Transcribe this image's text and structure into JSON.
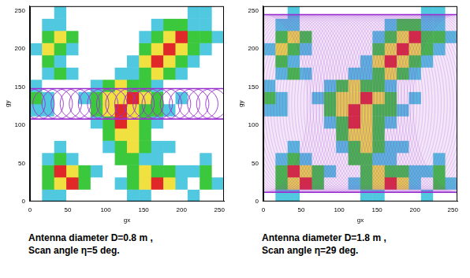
{
  "chart_data": [
    {
      "type": "heatmap",
      "caption": [
        "Antenna diameter D=0.8 m ,",
        "Scan angle η=5 deg."
      ],
      "x_label": "gx",
      "y_label": "gy",
      "xlim": [
        0,
        256
      ],
      "ylim": [
        0,
        256
      ],
      "xticks": [
        0,
        50,
        100,
        150,
        200,
        250
      ],
      "yticks": [
        0,
        50,
        100,
        150,
        200,
        250
      ],
      "grid": false,
      "cell_size": 16,
      "colors": [
        "#ffffff",
        "#50c8e0",
        "#3cc83c",
        "#f0e040",
        "#e02828"
      ],
      "cells": [
        [
          0,
          1,
          1,
          0,
          0,
          0,
          0,
          0,
          1,
          1,
          0,
          0,
          0,
          1,
          0,
          0
        ],
        [
          0,
          2,
          3,
          4,
          2,
          0,
          0,
          1,
          2,
          3,
          4,
          3,
          1,
          0,
          2,
          1
        ],
        [
          0,
          2,
          4,
          3,
          2,
          1,
          0,
          0,
          2,
          3,
          2,
          2,
          1,
          1,
          2,
          0
        ],
        [
          0,
          1,
          2,
          1,
          0,
          0,
          0,
          2,
          2,
          1,
          1,
          0,
          0,
          0,
          1,
          0
        ],
        [
          0,
          0,
          1,
          0,
          0,
          0,
          1,
          2,
          3,
          2,
          1,
          1,
          0,
          0,
          0,
          0
        ],
        [
          0,
          0,
          0,
          0,
          0,
          0,
          2,
          3,
          3,
          2,
          0,
          0,
          0,
          0,
          0,
          0
        ],
        [
          0,
          0,
          0,
          0,
          0,
          1,
          2,
          4,
          3,
          2,
          1,
          0,
          0,
          0,
          0,
          0
        ],
        [
          1,
          1,
          0,
          0,
          0,
          2,
          3,
          4,
          3,
          2,
          2,
          1,
          0,
          0,
          0,
          0
        ],
        [
          2,
          1,
          0,
          0,
          1,
          2,
          3,
          3,
          4,
          3,
          2,
          0,
          1,
          0,
          0,
          0
        ],
        [
          1,
          0,
          0,
          0,
          0,
          1,
          2,
          3,
          2,
          2,
          1,
          0,
          0,
          0,
          0,
          0
        ],
        [
          0,
          1,
          2,
          1,
          0,
          0,
          0,
          1,
          1,
          2,
          3,
          2,
          1,
          0,
          0,
          0
        ],
        [
          0,
          2,
          1,
          0,
          0,
          0,
          0,
          0,
          1,
          3,
          4,
          3,
          2,
          1,
          0,
          0
        ],
        [
          1,
          3,
          2,
          1,
          0,
          0,
          0,
          0,
          0,
          2,
          3,
          4,
          3,
          2,
          1,
          0
        ],
        [
          0,
          2,
          3,
          2,
          0,
          0,
          0,
          0,
          0,
          1,
          2,
          3,
          4,
          2,
          2,
          1
        ],
        [
          0,
          1,
          1,
          0,
          0,
          0,
          0,
          0,
          0,
          0,
          1,
          2,
          2,
          1,
          1,
          0
        ],
        [
          0,
          0,
          1,
          0,
          0,
          0,
          0,
          0,
          0,
          0,
          0,
          0,
          0,
          1,
          1,
          0
        ]
      ],
      "swath": {
        "ymin": 108,
        "ymax": 148,
        "color": "#9b30d0"
      }
    },
    {
      "type": "heatmap",
      "caption": [
        "Antenna diameter D=1.8 m ,",
        "Scan angle η=29 deg."
      ],
      "x_label": "gx",
      "y_label": "gy",
      "xlim": [
        0,
        256
      ],
      "ylim": [
        0,
        256
      ],
      "xticks": [
        0,
        50,
        100,
        150,
        200,
        250
      ],
      "yticks": [
        0,
        50,
        100,
        150,
        200,
        250
      ],
      "grid": false,
      "cell_size": 16,
      "colors": [
        "#ffffff",
        "#50c8e0",
        "#3cc83c",
        "#f0e040",
        "#e02828"
      ],
      "cells": [
        [
          0,
          1,
          1,
          0,
          0,
          0,
          0,
          0,
          1,
          1,
          0,
          0,
          0,
          1,
          0,
          0
        ],
        [
          0,
          2,
          3,
          4,
          2,
          0,
          0,
          1,
          2,
          3,
          4,
          3,
          1,
          0,
          2,
          1
        ],
        [
          0,
          2,
          4,
          3,
          2,
          1,
          0,
          0,
          2,
          3,
          2,
          2,
          1,
          1,
          2,
          0
        ],
        [
          0,
          1,
          2,
          1,
          0,
          0,
          0,
          2,
          2,
          1,
          1,
          0,
          0,
          0,
          1,
          0
        ],
        [
          0,
          0,
          1,
          0,
          0,
          0,
          1,
          2,
          3,
          2,
          1,
          1,
          0,
          0,
          0,
          0
        ],
        [
          0,
          0,
          0,
          0,
          0,
          0,
          2,
          3,
          3,
          2,
          0,
          0,
          0,
          0,
          0,
          0
        ],
        [
          0,
          0,
          0,
          0,
          0,
          1,
          2,
          4,
          3,
          2,
          1,
          0,
          0,
          0,
          0,
          0
        ],
        [
          1,
          1,
          0,
          0,
          0,
          2,
          3,
          4,
          3,
          2,
          2,
          1,
          0,
          0,
          0,
          0
        ],
        [
          2,
          1,
          0,
          0,
          1,
          2,
          3,
          3,
          4,
          3,
          2,
          0,
          1,
          0,
          0,
          0
        ],
        [
          1,
          0,
          0,
          0,
          0,
          1,
          2,
          3,
          2,
          2,
          1,
          0,
          0,
          0,
          0,
          0
        ],
        [
          0,
          1,
          2,
          1,
          0,
          0,
          0,
          1,
          1,
          2,
          3,
          2,
          1,
          0,
          0,
          0
        ],
        [
          0,
          2,
          1,
          0,
          0,
          0,
          0,
          0,
          1,
          3,
          4,
          3,
          2,
          1,
          0,
          0
        ],
        [
          1,
          3,
          2,
          1,
          0,
          0,
          0,
          0,
          0,
          2,
          3,
          4,
          3,
          2,
          1,
          0
        ],
        [
          0,
          2,
          3,
          2,
          0,
          0,
          0,
          0,
          0,
          1,
          2,
          3,
          4,
          2,
          2,
          1
        ],
        [
          0,
          1,
          1,
          0,
          0,
          0,
          0,
          0,
          0,
          0,
          1,
          2,
          2,
          1,
          1,
          0
        ],
        [
          0,
          0,
          1,
          0,
          0,
          0,
          0,
          0,
          0,
          0,
          0,
          0,
          0,
          1,
          1,
          0
        ]
      ],
      "swath": {
        "ymin": 12,
        "ymax": 245,
        "color": "#9b30d0"
      }
    }
  ]
}
